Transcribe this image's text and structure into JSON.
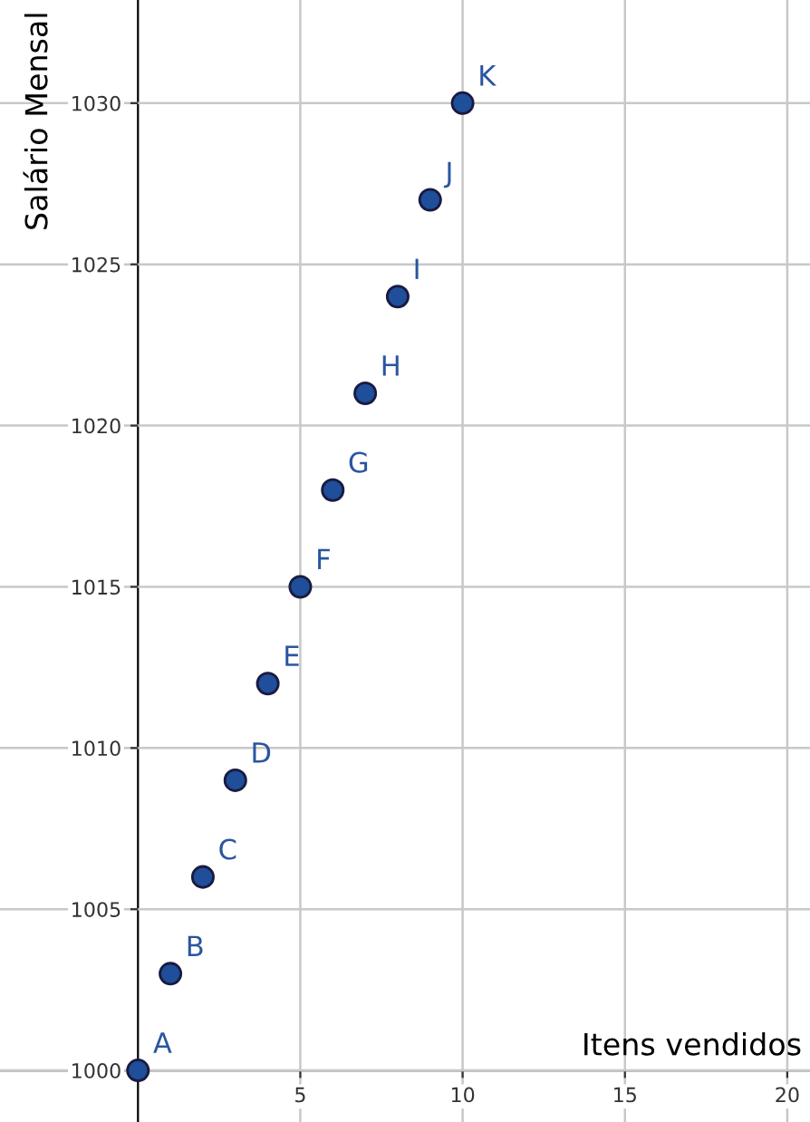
{
  "chart_data": {
    "type": "scatter",
    "xlabel": "Itens vendidos",
    "ylabel": "Salário Mensal",
    "x": [
      0,
      1,
      2,
      3,
      4,
      5,
      6,
      7,
      8,
      9,
      10
    ],
    "series": [
      {
        "color": "#1f4e9a",
        "values": [
          1000,
          1003,
          1006,
          1009,
          1012,
          1015,
          1018,
          1021,
          1024,
          1027,
          1030
        ]
      }
    ],
    "annotations": [
      {
        "text": "A",
        "x": 0,
        "y": 1000
      },
      {
        "text": "B",
        "x": 1,
        "y": 1003
      },
      {
        "text": "C",
        "x": 2,
        "y": 1006
      },
      {
        "text": "D",
        "x": 3,
        "y": 1009
      },
      {
        "text": "E",
        "x": 4,
        "y": 1012
      },
      {
        "text": "F",
        "x": 5,
        "y": 1015
      },
      {
        "text": "G",
        "x": 6,
        "y": 1018
      },
      {
        "text": "H",
        "x": 7,
        "y": 1021
      },
      {
        "text": "I",
        "x": 8,
        "y": 1024
      },
      {
        "text": "J",
        "x": 9,
        "y": 1027
      },
      {
        "text": "K",
        "x": 10,
        "y": 1030
      }
    ],
    "xlim": [
      -4.25,
      20.7
    ],
    "ylim": [
      998.4,
      1033.2
    ],
    "xticks": [
      5,
      10,
      15,
      20
    ],
    "yticks": [
      1000,
      1005,
      1010,
      1015,
      1020,
      1025,
      1030
    ],
    "grid": true,
    "marker": "circle"
  }
}
